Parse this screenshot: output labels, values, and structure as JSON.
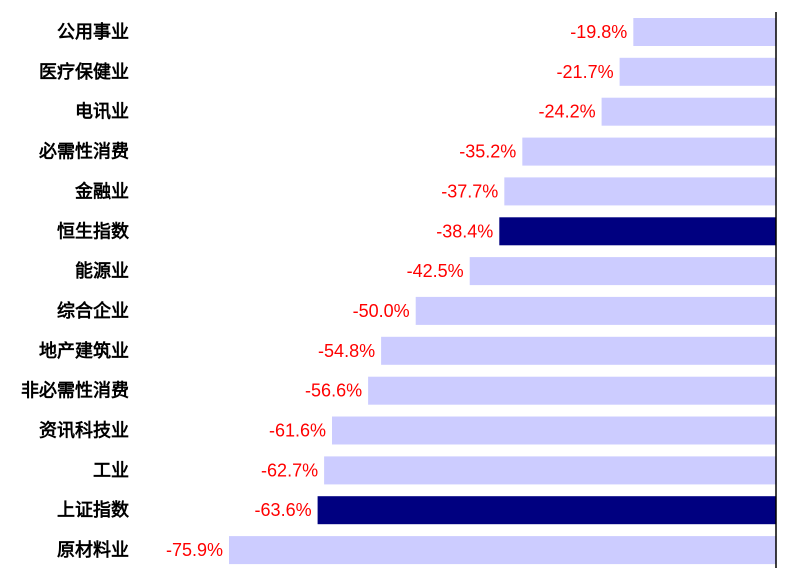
{
  "chart_data": {
    "type": "bar",
    "orientation": "horizontal",
    "title": "",
    "xlabel": "",
    "ylabel": "",
    "xlim": [
      -80,
      0
    ],
    "grid": false,
    "legend": "none",
    "colors": {
      "default": "#ccccff",
      "highlight": "#000080",
      "value_label": "#ff0000",
      "category_label": "#000000",
      "axis": "#000000"
    },
    "categories": [
      "公用事业",
      "医疗保健业",
      "电讯业",
      "必需性消费",
      "金融业",
      "恒生指数",
      "能源业",
      "综合企业",
      "地产建筑业",
      "非必需性消费",
      "资讯科技业",
      "工业",
      "上证指数",
      "原材料业"
    ],
    "values": [
      -19.8,
      -21.7,
      -24.2,
      -35.2,
      -37.7,
      -38.4,
      -42.5,
      -50.0,
      -54.8,
      -56.6,
      -61.6,
      -62.7,
      -63.6,
      -75.9
    ],
    "value_labels": [
      "-19.8%",
      "-21.7%",
      "-24.2%",
      "-35.2%",
      "-37.7%",
      "-38.4%",
      "-42.5%",
      "-50.0%",
      "-54.8%",
      "-56.6%",
      "-61.6%",
      "-62.7%",
      "-63.6%",
      "-75.9%"
    ],
    "highlighted": [
      "恒生指数",
      "上证指数"
    ]
  }
}
